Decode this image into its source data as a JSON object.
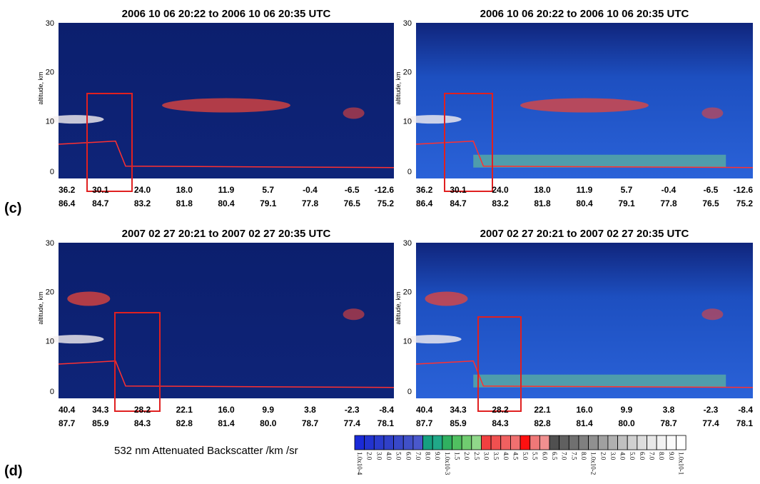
{
  "panel_labels": [
    "(c)",
    "(d)"
  ],
  "panels": [
    {
      "title": "2006 10 06 20:22  to  2006 10 06 20:35 UTC",
      "ylabel": "altitude, km",
      "yticks": [
        "30",
        "20",
        "10",
        "0"
      ],
      "lat": [
        "36.2",
        "30.1",
        "24.0",
        "18.0",
        "11.9",
        "5.7",
        "-0.4",
        "-6.5",
        "-12.6"
      ],
      "lon": [
        "86.4",
        "84.7",
        "83.2",
        "81.8",
        "80.4",
        "79.1",
        "77.8",
        "76.5",
        "75.2"
      ]
    },
    {
      "title": "2006 10 06 20:22  to  2006 10 06 20:35 UTC",
      "ylabel": "altitude, km",
      "yticks": [
        "30",
        "20",
        "10",
        "0"
      ],
      "lat": [
        "36.2",
        "30.1",
        "24.0",
        "18.0",
        "11.9",
        "5.7",
        "-0.4",
        "-6.5",
        "-12.6"
      ],
      "lon": [
        "86.4",
        "84.7",
        "83.2",
        "81.8",
        "80.4",
        "79.1",
        "77.8",
        "76.5",
        "75.2"
      ]
    },
    {
      "title": "2007 02 27 20:21  to 2007 02 27 20:35 UTC",
      "ylabel": "altitude, km",
      "yticks": [
        "30",
        "20",
        "10",
        "0"
      ],
      "lat": [
        "40.4",
        "34.3",
        "28.2",
        "22.1",
        "16.0",
        "9.9",
        "3.8",
        "-2.3",
        "-8.4"
      ],
      "lon": [
        "87.7",
        "85.9",
        "84.3",
        "82.8",
        "81.4",
        "80.0",
        "78.7",
        "77.4",
        "78.1"
      ]
    },
    {
      "title": "2007 02 27 20:21  to 2007 02 27 20:35 UTC",
      "ylabel": "altitude, km",
      "yticks": [
        "30",
        "20",
        "10",
        "0"
      ],
      "lat": [
        "40.4",
        "34.3",
        "28.2",
        "22.1",
        "16.0",
        "9.9",
        "3.8",
        "-2.3",
        "-8.4"
      ],
      "lon": [
        "87.7",
        "85.9",
        "84.3",
        "82.8",
        "81.4",
        "80.0",
        "78.7",
        "77.4",
        "78.1"
      ]
    }
  ],
  "colorbar": {
    "title": "532 nm Attenuated Backscatter /km /sr",
    "labels": [
      "1.0x10-4",
      "2.0",
      "3.0",
      "4.0",
      "5.0",
      "6.0",
      "7.0",
      "8.0",
      "9.0",
      "1.0x10-3",
      "1.5",
      "2.0",
      "2.5",
      "3.0",
      "3.5",
      "4.0",
      "4.5",
      "5.0",
      "5.5",
      "6.0",
      "6.5",
      "7.0",
      "7.5",
      "8.0",
      "1.0x10-2",
      "2.0",
      "3.0",
      "4.0",
      "5.0",
      "6.0",
      "7.0",
      "8.0",
      "9.0",
      "1.0x10-1"
    ]
  }
}
